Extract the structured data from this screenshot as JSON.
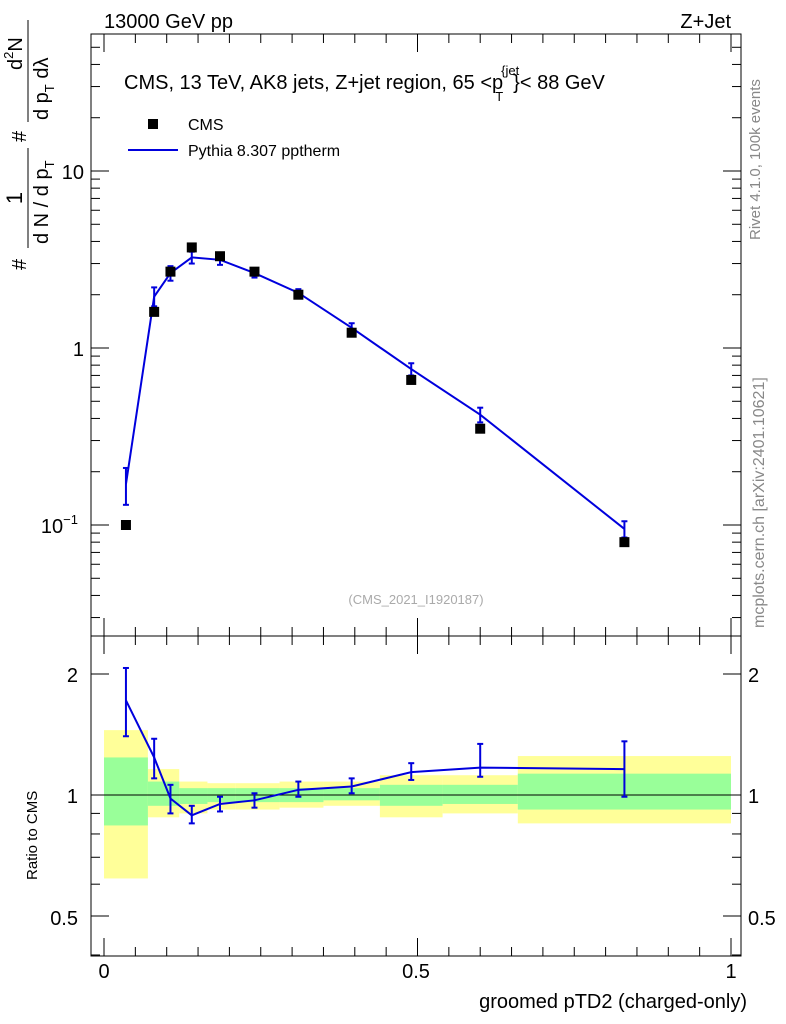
{
  "header": {
    "left": "13000 GeV pp",
    "right": "Z+Jet"
  },
  "side_text": {
    "rivet": "Rivet 4.1.0,  100k events",
    "mcplots": "mcplots.cern.ch [arXiv:2401.10621]"
  },
  "chart_data": [
    {
      "type": "scatter",
      "panel": "main",
      "title": "CMS, 13 TeV, AK8 jets, Z+jet region, 65 <p_T^{jet}< 88 GeV",
      "title_parts": {
        "prefix": "CMS, 13 TeV, AK8 jets, Z+jet region, 65 <p",
        "sub": "T",
        "sup": "{jet",
        "suffix": "}< 88 GeV"
      },
      "ylabel": "1/(dN/dpT) d²N/(dpT dλ)",
      "ylabel_parts": {
        "one": "1",
        "den": "d N / d p",
        "sub": "T",
        "num": "d",
        "sup": "2",
        "num_after": "N",
        "den2": "d p",
        "sub2": "T",
        "den2_after": " d",
        "lambda": "λ",
        "hash": "#"
      },
      "yscale": "log",
      "ylim": [
        0.025,
        55
      ],
      "xlim": [
        -0.02,
        1.0
      ],
      "yticks": [
        0.1,
        1,
        10
      ],
      "ytick_labels": {
        "base": "10",
        "exp": "−1",
        "one": "1",
        "ten": "10"
      },
      "legend": {
        "placement": "top-left",
        "entries": [
          "CMS",
          "Pythia 8.307 pptherm"
        ]
      },
      "watermark": "(CMS_2021_I1920187)",
      "series": [
        {
          "name": "CMS",
          "marker": "square",
          "color": "#000000",
          "x": [
            0.035,
            0.08,
            0.106,
            0.14,
            0.185,
            0.24,
            0.31,
            0.395,
            0.49,
            0.6,
            0.83
          ],
          "values": [
            0.1,
            1.6,
            2.7,
            3.7,
            3.3,
            2.7,
            2.0,
            1.22,
            0.66,
            0.35,
            0.08
          ]
        },
        {
          "name": "Pythia 8.307 pptherm",
          "marker": "line",
          "color": "#0000dd",
          "x": [
            0.035,
            0.08,
            0.106,
            0.14,
            0.185,
            0.24,
            0.31,
            0.395,
            0.49,
            0.6,
            0.83
          ],
          "values": [
            0.17,
            1.95,
            2.65,
            3.25,
            3.15,
            2.65,
            2.05,
            1.3,
            0.76,
            0.42,
            0.095
          ],
          "err_lo": [
            0.13,
            1.72,
            2.4,
            3.0,
            2.95,
            2.5,
            1.95,
            1.23,
            0.7,
            0.38,
            0.085
          ],
          "err_hi": [
            0.21,
            2.2,
            2.9,
            3.5,
            3.35,
            2.8,
            2.15,
            1.38,
            0.82,
            0.46,
            0.105
          ]
        }
      ]
    },
    {
      "type": "line",
      "panel": "ratio",
      "ylabel": "Ratio to CMS",
      "xlabel": "groomed pTD2 (charged-only)",
      "yscale": "log",
      "ylim": [
        0.4,
        2.4
      ],
      "xlim": [
        -0.02,
        1.0
      ],
      "yticks": [
        0.5,
        1,
        2
      ],
      "ytick_labels": [
        "0.5",
        "1",
        "2"
      ],
      "xticks": [
        0,
        0.5,
        1
      ],
      "xtick_labels": [
        "0",
        "0.5",
        "1"
      ],
      "reference_line": 1,
      "uncertainty_bands": {
        "bins_x": [
          0,
          0.07,
          0.12,
          0.165,
          0.21,
          0.28,
          0.35,
          0.44,
          0.54,
          0.66,
          1.0
        ],
        "yellow_lo": [
          0.62,
          0.88,
          0.9,
          0.92,
          0.92,
          0.93,
          0.94,
          0.88,
          0.9,
          0.85
        ],
        "yellow_hi": [
          1.45,
          1.16,
          1.08,
          1.07,
          1.07,
          1.08,
          1.08,
          1.12,
          1.12,
          1.25
        ],
        "green_lo": [
          0.84,
          0.94,
          0.95,
          0.96,
          0.96,
          0.96,
          0.97,
          0.94,
          0.95,
          0.92
        ],
        "green_hi": [
          1.24,
          1.08,
          1.04,
          1.04,
          1.04,
          1.04,
          1.04,
          1.06,
          1.06,
          1.13
        ]
      },
      "series": [
        {
          "name": "Pythia 8.307 pptherm / CMS",
          "color": "#0000dd",
          "x": [
            0.035,
            0.08,
            0.106,
            0.14,
            0.185,
            0.24,
            0.31,
            0.395,
            0.49,
            0.6,
            0.83
          ],
          "values": [
            1.72,
            1.24,
            0.98,
            0.89,
            0.95,
            0.97,
            1.03,
            1.05,
            1.14,
            1.17,
            1.16
          ],
          "err_lo": [
            1.4,
            1.1,
            0.9,
            0.85,
            0.91,
            0.93,
            0.99,
            1.01,
            1.09,
            1.11,
            0.99
          ],
          "err_hi": [
            2.07,
            1.38,
            1.06,
            0.94,
            0.99,
            1.01,
            1.08,
            1.1,
            1.2,
            1.34,
            1.36
          ]
        }
      ]
    }
  ]
}
